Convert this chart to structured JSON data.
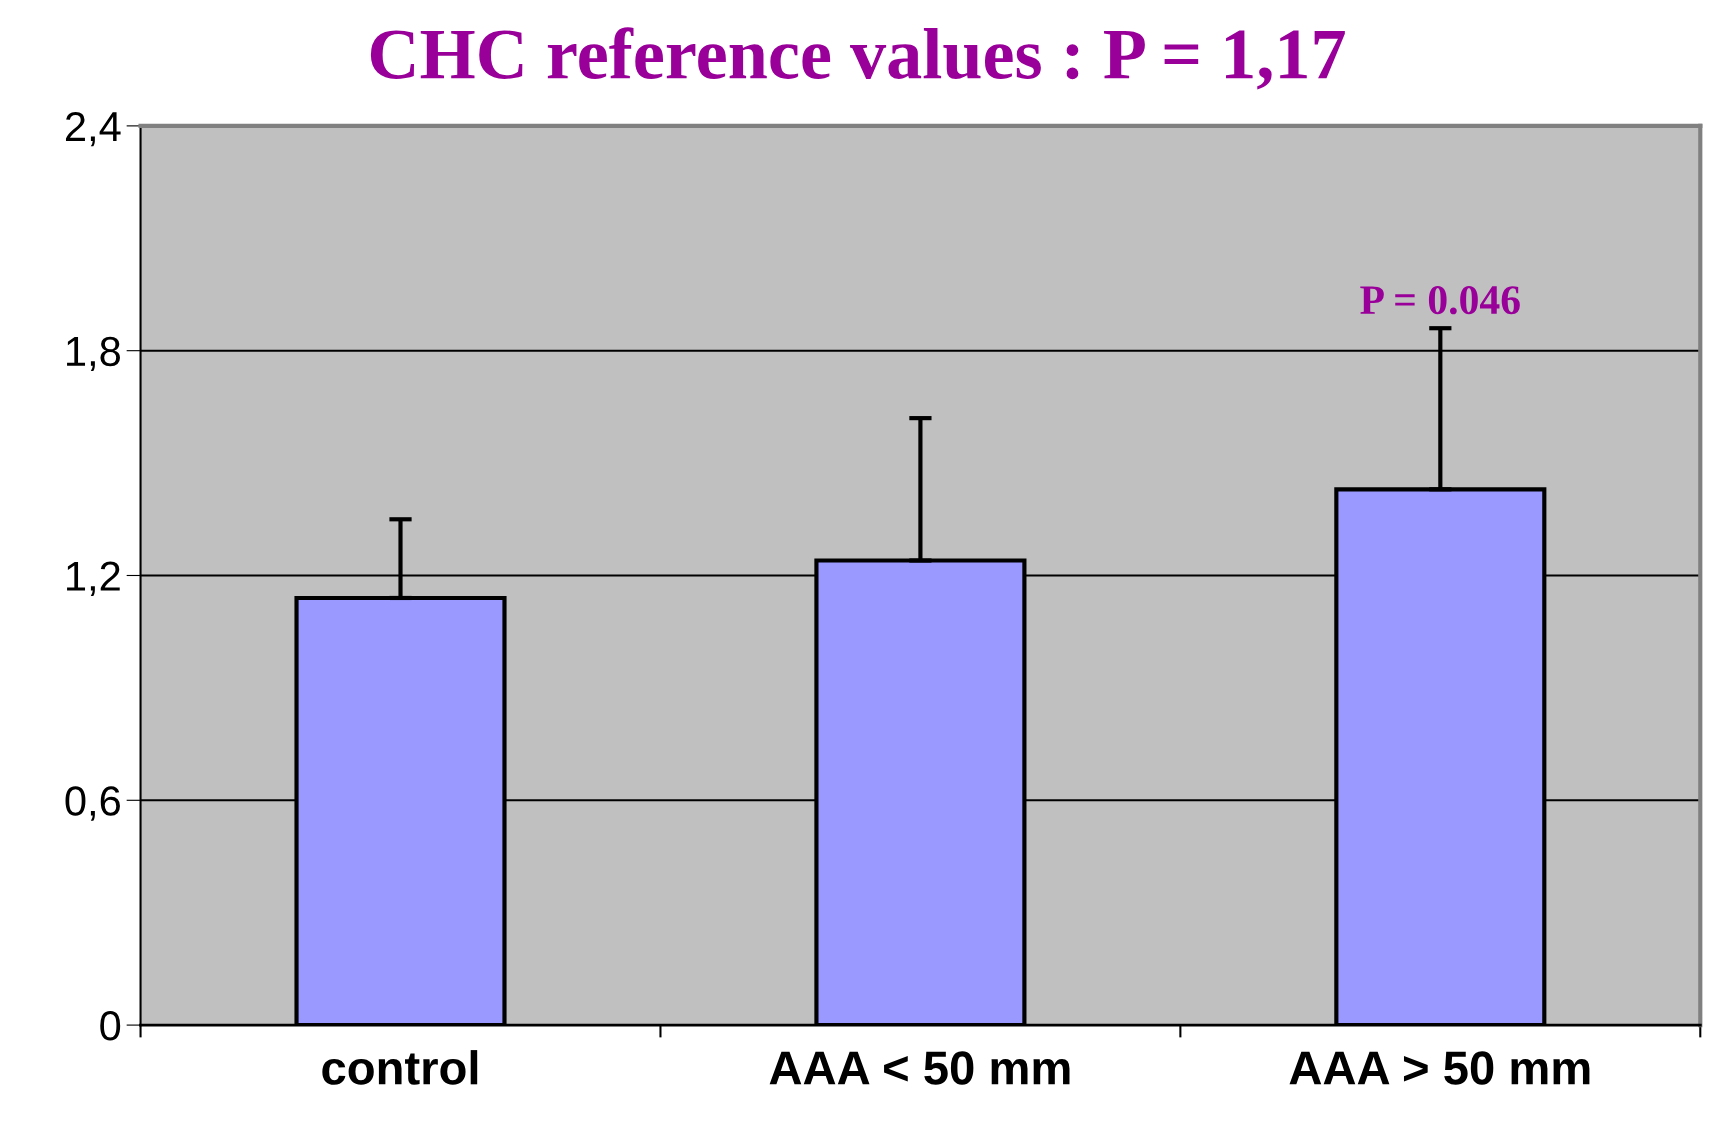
{
  "chart_data": {
    "type": "bar",
    "title": "CHC reference values : P = 1,17",
    "categories": [
      "control",
      "AAA < 50 mm",
      "AAA > 50 mm"
    ],
    "values": [
      1.14,
      1.24,
      1.43
    ],
    "errors": [
      0.21,
      0.38,
      0.43
    ],
    "color": "#9999ff",
    "ylim": [
      0,
      2.4
    ],
    "yticks": [
      {
        "value": 0,
        "label": "0"
      },
      {
        "value": 0.6,
        "label": "0,6"
      },
      {
        "value": 1.2,
        "label": "1,2"
      },
      {
        "value": 1.8,
        "label": "1,8"
      },
      {
        "value": 2.4,
        "label": "2,4"
      }
    ],
    "grid": "y",
    "annotations": [
      "P = 0.046"
    ]
  }
}
